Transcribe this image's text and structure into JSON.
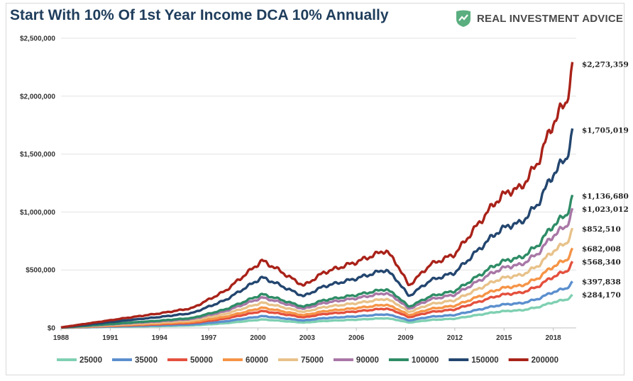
{
  "header": {
    "title": "Start With 10% Of 1st Year Income DCA 10% Annually",
    "brand": "REAL INVESTMENT ADVICE",
    "brand_icon": "rising-chart-shield-icon",
    "brand_color": "#5aae7f"
  },
  "chart_data": {
    "type": "line",
    "title": "Start With 10% Of 1st Year Income DCA 10% Annually",
    "xlabel": "",
    "ylabel": "",
    "xlim": [
      1988,
      2019.4
    ],
    "ylim": [
      0,
      2500000
    ],
    "grid": "horizontal",
    "legend": "bottom",
    "x_ticks": [
      "1988",
      "1991",
      "1994",
      "1997",
      "2000",
      "2003",
      "2006",
      "2009",
      "2012",
      "2015",
      "2018"
    ],
    "y_ticks": [
      "$0",
      "$500,000",
      "$1,000,000",
      "$1,500,000",
      "$2,000,000",
      "$2,500,000"
    ],
    "x": [
      1988,
      1990,
      1992,
      1994,
      1996,
      1998,
      2000.25,
      2001,
      2002,
      2002.8,
      2004,
      2006,
      2007.8,
      2008.5,
      2009.2,
      2010.5,
      2012,
      2013.5,
      2014.5,
      2015.3,
      2016,
      2017,
      2018,
      2018.8,
      2019.2
    ],
    "base_shape": [
      0.002,
      0.02,
      0.038,
      0.055,
      0.075,
      0.14,
      0.255,
      0.23,
      0.19,
      0.16,
      0.21,
      0.25,
      0.295,
      0.24,
      0.16,
      0.24,
      0.28,
      0.4,
      0.48,
      0.52,
      0.53,
      0.62,
      0.78,
      0.86,
      1.0
    ],
    "series": [
      {
        "name": "25000",
        "color": "#7fd0b2",
        "end": 284170,
        "end_label": "$284,170"
      },
      {
        "name": "35000",
        "color": "#5b8fce",
        "end": 397838,
        "end_label": "$397,838"
      },
      {
        "name": "50000",
        "color": "#e4503d",
        "end": 568340,
        "end_label": "$568,340"
      },
      {
        "name": "60000",
        "color": "#f59447",
        "end": 682008,
        "end_label": "$682,008"
      },
      {
        "name": "75000",
        "color": "#e8c28a",
        "end": 852510,
        "end_label": "$852,510"
      },
      {
        "name": "90000",
        "color": "#a877a6",
        "end": 1023012,
        "end_label": "$1,023,012"
      },
      {
        "name": "100000",
        "color": "#2e8c66",
        "end": 1136680,
        "end_label": "$1,136,680"
      },
      {
        "name": "150000",
        "color": "#23466f",
        "end": 1705019,
        "end_label": "$1,705,019"
      },
      {
        "name": "200000",
        "color": "#a92219",
        "end": 2273359,
        "end_label": "$2,273,359"
      }
    ]
  }
}
